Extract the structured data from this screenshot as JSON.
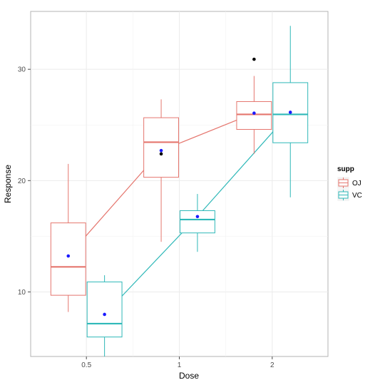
{
  "chart_data": {
    "type": "boxplot",
    "xlabel": "Dose",
    "ylabel": "Response",
    "categories": [
      "0.5",
      "1",
      "2"
    ],
    "y_ticks": [
      10,
      20,
      30
    ],
    "ylim": [
      4.2,
      35.2
    ],
    "grid": true,
    "legend": {
      "title": "supp",
      "position": "right",
      "entries": [
        "OJ",
        "VC"
      ]
    },
    "series": [
      {
        "name": "OJ",
        "color": "#e5766e",
        "boxes": [
          {
            "category": "0.5",
            "min": 8.2,
            "q1": 9.7,
            "median": 12.25,
            "q3": 16.2,
            "max": 21.5,
            "outliers": []
          },
          {
            "category": "1",
            "min": 14.5,
            "q1": 20.3,
            "median": 23.45,
            "q3": 25.65,
            "max": 27.3,
            "outliers": [
              22.4
            ]
          },
          {
            "category": "2",
            "min": 22.4,
            "q1": 24.6,
            "median": 25.95,
            "q3": 27.1,
            "max": 29.4,
            "outliers": [
              30.9
            ]
          }
        ],
        "means": [
          13.23,
          22.7,
          26.06
        ]
      },
      {
        "name": "VC",
        "color": "#2eb8b8",
        "boxes": [
          {
            "category": "0.5",
            "min": 4.2,
            "q1": 5.95,
            "median": 7.15,
            "q3": 10.9,
            "max": 11.5,
            "outliers": []
          },
          {
            "category": "1",
            "min": 13.6,
            "q1": 15.3,
            "median": 16.5,
            "q3": 17.3,
            "max": 18.8,
            "outliers": []
          },
          {
            "category": "2",
            "min": 18.5,
            "q1": 23.4,
            "median": 25.95,
            "q3": 28.8,
            "max": 33.9,
            "outliers": []
          }
        ],
        "means": [
          7.98,
          16.77,
          26.14
        ]
      }
    ],
    "mean_point_color": "#1a1aff",
    "outlier_color": "#000000"
  }
}
